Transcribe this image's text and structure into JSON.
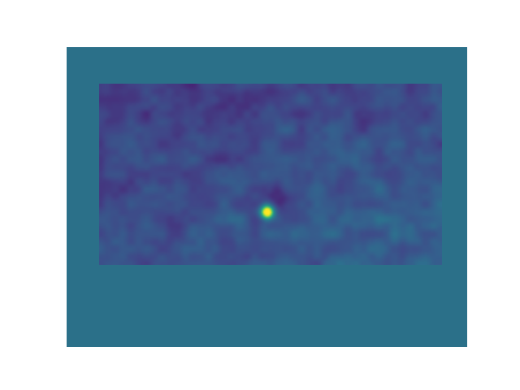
{
  "figure": {
    "background": "#ffffff",
    "axes_facecolor": "#2b7089"
  },
  "chart_data": {
    "type": "heatmap",
    "colormap": "viridis",
    "title": "",
    "xlabel": "",
    "ylabel": "",
    "axes_visible": false,
    "grid": false,
    "legend": "none",
    "image_aspect": "equal",
    "value_range": [
      0,
      1
    ],
    "field_summary": {
      "background_level": 0.15,
      "peak": {
        "value": 1.0,
        "col_fraction": 0.49,
        "row_fraction": 0.71
      },
      "low_region": "upper-left",
      "brighter_region": "lower-right"
    }
  }
}
